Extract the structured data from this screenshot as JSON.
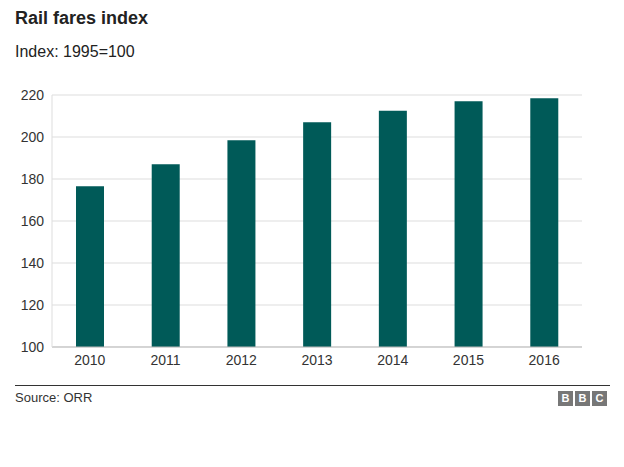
{
  "chart_data": {
    "type": "bar",
    "title": "Rail fares index",
    "subtitle": "Index: 1995=100",
    "source": "Source: ORR",
    "logo": "BBC",
    "categories": [
      "2010",
      "2011",
      "2012",
      "2013",
      "2014",
      "2015",
      "2016"
    ],
    "values": [
      176.5,
      187,
      198.5,
      207,
      212.5,
      217,
      218.5
    ],
    "color": "#005a58",
    "ylim": [
      100,
      220
    ],
    "yticks": [
      100,
      120,
      140,
      160,
      180,
      200,
      220
    ],
    "grid": true
  }
}
